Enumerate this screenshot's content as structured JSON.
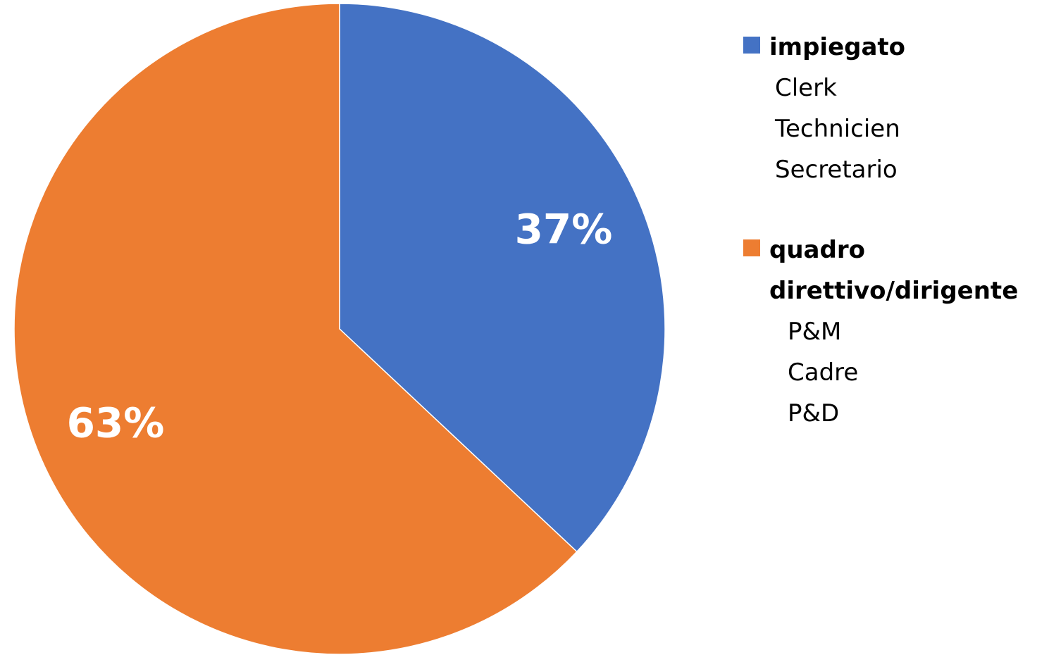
{
  "chart_data": {
    "type": "pie",
    "categories": [
      "impiegato",
      "quadro direttivo/dirigente"
    ],
    "values": [
      37,
      63
    ],
    "value_labels": [
      "37%",
      "63%"
    ],
    "colors": [
      "#4472c4",
      "#ed7d31"
    ],
    "legend_details": [
      [
        "Clerk",
        "Technicien",
        "Secretario"
      ],
      [
        "P&M",
        "Cadre",
        "P&D"
      ]
    ]
  }
}
